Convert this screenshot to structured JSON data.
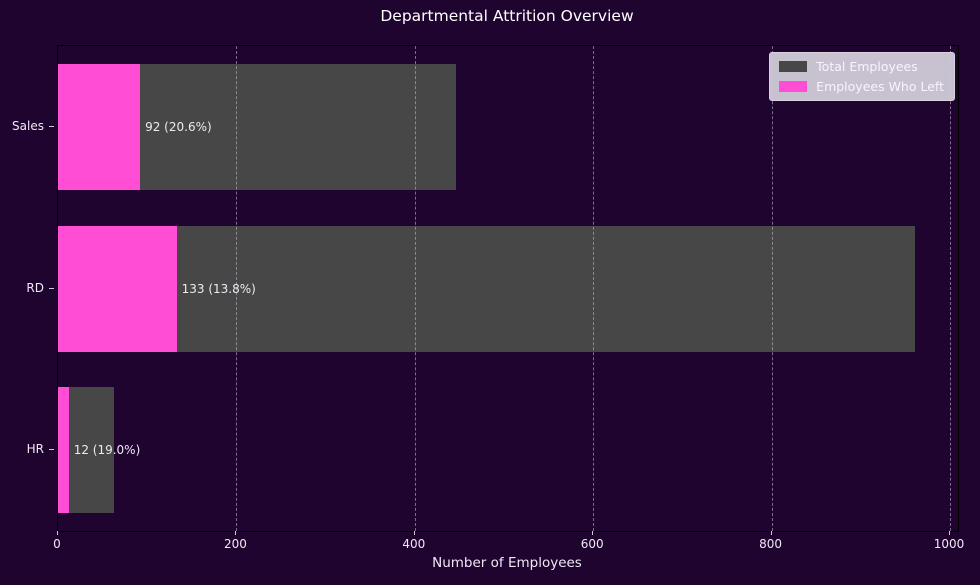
{
  "figure": {
    "background_color": "#200430",
    "text_color": "#efe9f3",
    "spine_color": "#000000",
    "gridline_color": "rgba(201,193,212,0.55)"
  },
  "chart_data": {
    "type": "bar",
    "orientation": "horizontal",
    "title": "Departmental Attrition Overview",
    "xlabel": "Number of Employees",
    "categories": [
      "Sales",
      "RD",
      "HR"
    ],
    "series": [
      {
        "name": "Total Employees",
        "color": "#474747",
        "values": [
          446,
          961,
          63
        ]
      },
      {
        "name": "Employees Who Left",
        "color": "#ff4ed5",
        "values": [
          92,
          133,
          12
        ]
      }
    ],
    "bar_labels": [
      "92 (20.6%)",
      "133 (13.8%)",
      "12 (19.0%)"
    ],
    "xticks": [
      0,
      200,
      400,
      600,
      800,
      1000
    ],
    "xlim": [
      0,
      1009
    ],
    "grid": {
      "axis": "x",
      "style": "dashed",
      "above_bars": true
    },
    "legend": {
      "position": "upper-right",
      "background": "rgba(210,203,217,0.95)",
      "text_color": "#f7f4fa"
    }
  }
}
